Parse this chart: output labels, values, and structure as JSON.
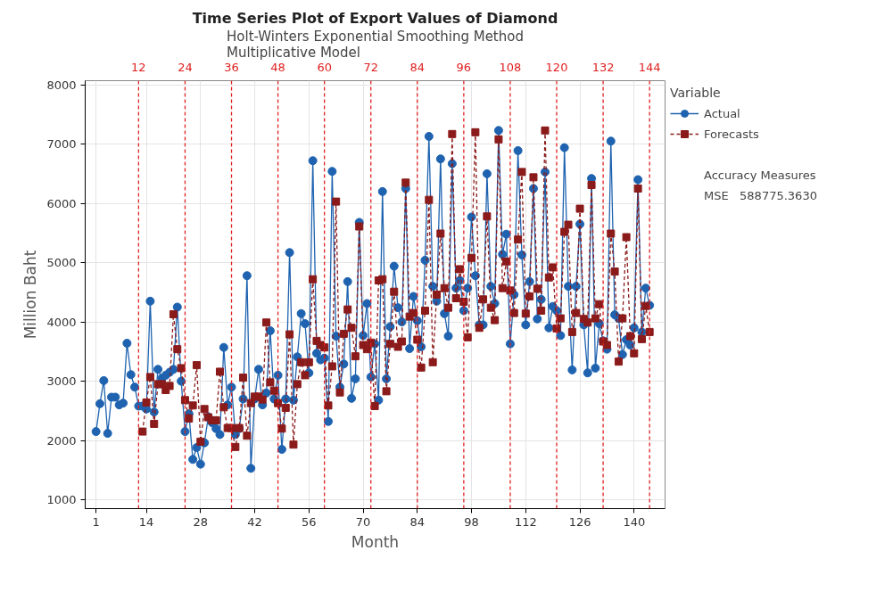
{
  "chart_data": {
    "type": "line",
    "title": "Time Series Plot of Export Values of Diamond",
    "subtitle": "Holt-Winters Exponential Smoothing Method\nMultiplicative Model",
    "xlabel": "Month",
    "ylabel": "Million Baht",
    "legend_title": "Variable",
    "xlim": [
      -1.8,
      148
    ],
    "xticks": [
      1,
      14,
      28,
      42,
      56,
      70,
      84,
      98,
      112,
      126,
      140
    ],
    "ylim": [
      850,
      8070
    ],
    "yticks": [
      1000,
      2000,
      3000,
      4000,
      5000,
      6000,
      7000,
      8000
    ],
    "grid": true,
    "legend": "right",
    "series": [
      {
        "name": "Actual",
        "color": "#1f63b0",
        "marker": "circle",
        "line_style": "solid",
        "x": [
          1,
          2,
          3,
          4,
          5,
          6,
          7,
          8,
          9,
          10,
          11,
          12,
          13,
          14,
          15,
          16,
          17,
          18,
          19,
          20,
          21,
          22,
          23,
          24,
          25,
          26,
          27,
          28,
          29,
          30,
          31,
          32,
          33,
          34,
          35,
          36,
          37,
          38,
          39,
          40,
          41,
          42,
          43,
          44,
          45,
          46,
          47,
          48,
          49,
          50,
          51,
          52,
          53,
          54,
          55,
          56,
          57,
          58,
          59,
          60,
          61,
          62,
          63,
          64,
          65,
          66,
          67,
          68,
          69,
          70,
          71,
          72,
          73,
          74,
          75,
          76,
          77,
          78,
          79,
          80,
          81,
          82,
          83,
          84,
          85,
          86,
          87,
          88,
          89,
          90,
          91,
          92,
          93,
          94,
          95,
          96,
          97,
          98,
          99,
          100,
          101,
          102,
          103,
          104,
          105,
          106,
          107,
          108,
          109,
          110,
          111,
          112,
          113,
          114,
          115,
          116,
          117,
          118,
          119,
          120,
          121,
          122,
          123,
          124,
          125,
          126,
          127,
          128,
          129,
          130,
          131,
          132,
          133,
          134,
          135,
          136,
          137,
          138,
          139,
          140,
          141,
          142,
          143,
          144
        ],
        "values": [
          2150,
          2620,
          3010,
          2120,
          2730,
          2730,
          2600,
          2630,
          3640,
          3110,
          2900,
          2580,
          2580,
          2530,
          4350,
          2480,
          3200,
          3050,
          3100,
          3150,
          3200,
          4250,
          3000,
          2150,
          2450,
          1680,
          1880,
          1600,
          1960,
          2400,
          2300,
          2200,
          2100,
          3570,
          2600,
          2900,
          2100,
          2200,
          2700,
          4780,
          1530,
          2700,
          3200,
          2600,
          2800,
          3850,
          2700,
          3100,
          1850,
          2700,
          5170,
          2680,
          3410,
          4140,
          3970,
          3140,
          6720,
          3470,
          3360,
          3390,
          2320,
          6540,
          3760,
          2900,
          3290,
          4680,
          2710,
          3040,
          5680,
          3770,
          4310,
          3070,
          3630,
          2680,
          6200,
          3040,
          3920,
          4940,
          4240,
          4000,
          6250,
          3550,
          4430,
          4020,
          3580,
          5040,
          7130,
          4600,
          4350,
          6750,
          4140,
          3760,
          6670,
          4570,
          4700,
          4190,
          4570,
          5770,
          4780,
          3950,
          3950,
          6500,
          4600,
          4310,
          7230,
          5140,
          5480,
          3630,
          4460,
          6890,
          5130,
          3950,
          4680,
          6250,
          4050,
          4380,
          6530,
          3900,
          4260,
          4190,
          3770,
          6940,
          4600,
          3190,
          4600,
          5650,
          3950,
          3140,
          6420,
          3220,
          3970,
          3680,
          3540,
          7050,
          4120,
          4060,
          3450,
          3700,
          3610,
          3900,
          6400,
          3830,
          4570,
          4280
        ]
      },
      {
        "name": "Forecasts",
        "color": "#8b1a1a",
        "marker": "square",
        "line_style": "dashed",
        "x": [
          13,
          14,
          15,
          16,
          17,
          18,
          19,
          20,
          21,
          22,
          23,
          24,
          25,
          26,
          27,
          28,
          29,
          30,
          31,
          32,
          33,
          34,
          35,
          36,
          37,
          38,
          39,
          40,
          41,
          42,
          43,
          44,
          45,
          46,
          47,
          48,
          49,
          50,
          51,
          52,
          53,
          54,
          55,
          56,
          57,
          58,
          59,
          60,
          61,
          62,
          63,
          64,
          65,
          66,
          67,
          68,
          69,
          70,
          71,
          72,
          73,
          74,
          75,
          76,
          77,
          78,
          79,
          80,
          81,
          82,
          83,
          84,
          85,
          86,
          87,
          88,
          89,
          90,
          91,
          92,
          93,
          94,
          95,
          96,
          97,
          98,
          99,
          100,
          101,
          102,
          103,
          104,
          105,
          106,
          107,
          108,
          109,
          110,
          111,
          112,
          113,
          114,
          115,
          116,
          117,
          118,
          119,
          120,
          121,
          122,
          123,
          124,
          125,
          126,
          127,
          128,
          129,
          130,
          131,
          132,
          133,
          134,
          135,
          136,
          137,
          138,
          139,
          140,
          141,
          142,
          143,
          144
        ],
        "values": [
          2150,
          2640,
          3070,
          2280,
          2950,
          2950,
          2850,
          2920,
          4130,
          3540,
          3220,
          2680,
          2370,
          2590,
          3270,
          1980,
          2530,
          2390,
          2340,
          2340,
          3160,
          2560,
          2210,
          2210,
          1890,
          2210,
          3060,
          2080,
          2630,
          2740,
          2740,
          2690,
          3990,
          2980,
          2840,
          2630,
          2200,
          2550,
          3790,
          1930,
          2950,
          3320,
          3100,
          3320,
          4720,
          3680,
          3610,
          3570,
          2590,
          3250,
          6030,
          2810,
          3800,
          4210,
          3900,
          3420,
          5610,
          3610,
          3540,
          3650,
          2580,
          4700,
          4720,
          2830,
          3630,
          4510,
          3580,
          3670,
          6350,
          4090,
          4150,
          3700,
          3230,
          4190,
          6060,
          3320,
          4460,
          5490,
          4570,
          4240,
          7170,
          4400,
          4890,
          4340,
          3740,
          5080,
          7200,
          3900,
          4380,
          5780,
          4240,
          4030,
          7080,
          4570,
          5020,
          4530,
          4150,
          5390,
          6530,
          4140,
          4430,
          6440,
          4560,
          4190,
          7230,
          4750,
          4920,
          3890,
          4060,
          5520,
          5640,
          3830,
          4150,
          5910,
          4050,
          3990,
          6310,
          4060,
          4300,
          3670,
          3610,
          5490,
          4850,
          3330,
          4060,
          5430,
          3760,
          3470,
          6250,
          3710,
          4270,
          3830
        ]
      }
    ],
    "ref_lines": [
      {
        "axis": "x",
        "value": 12,
        "label": "12",
        "color": "#e02020",
        "line_style": "dashed"
      },
      {
        "axis": "x",
        "value": 24,
        "label": "24",
        "color": "#e02020",
        "line_style": "dashed"
      },
      {
        "axis": "x",
        "value": 36,
        "label": "36",
        "color": "#e02020",
        "line_style": "dashed"
      },
      {
        "axis": "x",
        "value": 48,
        "label": "48",
        "color": "#e02020",
        "line_style": "dashed"
      },
      {
        "axis": "x",
        "value": 60,
        "label": "60",
        "color": "#e02020",
        "line_style": "dashed"
      },
      {
        "axis": "x",
        "value": 72,
        "label": "72",
        "color": "#e02020",
        "line_style": "dashed"
      },
      {
        "axis": "x",
        "value": 84,
        "label": "84",
        "color": "#e02020",
        "line_style": "dashed"
      },
      {
        "axis": "x",
        "value": 96,
        "label": "96",
        "color": "#e02020",
        "line_style": "dashed"
      },
      {
        "axis": "x",
        "value": 108,
        "label": "108",
        "color": "#e02020",
        "line_style": "dashed"
      },
      {
        "axis": "x",
        "value": 120,
        "label": "120",
        "color": "#e02020",
        "line_style": "dashed"
      },
      {
        "axis": "x",
        "value": 132,
        "label": "132",
        "color": "#e02020",
        "line_style": "dashed"
      },
      {
        "axis": "x",
        "value": 144,
        "label": "144",
        "color": "#e02020",
        "line_style": "dashed"
      }
    ],
    "annotations": [
      "Accuracy Measures",
      "MSE   588775.3630"
    ]
  }
}
